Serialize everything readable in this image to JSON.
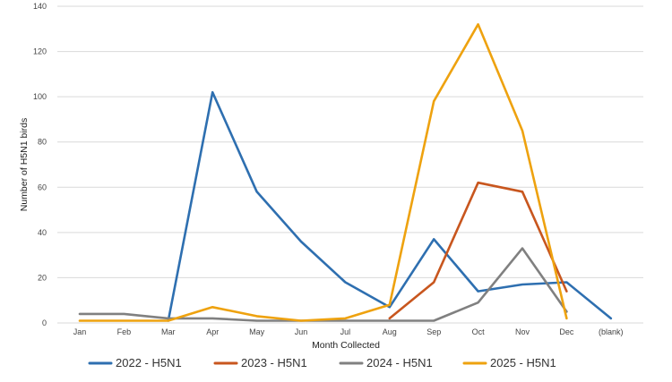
{
  "chart_data": {
    "type": "line",
    "xlabel": "Month Collected",
    "ylabel": "Number of H5N1 birds",
    "ylim": [
      0,
      140
    ],
    "yticks": [
      0,
      20,
      40,
      60,
      80,
      100,
      120,
      140
    ],
    "grid": true,
    "legend_position": "bottom",
    "categories": [
      "Jan",
      "Feb",
      "Mar",
      "Apr",
      "May",
      "Jun",
      "Jul",
      "Aug",
      "Sep",
      "Oct",
      "Nov",
      "Dec",
      "(blank)"
    ],
    "series": [
      {
        "name": "2022 - H5N1",
        "color": "#2e6fb0",
        "values": [
          null,
          null,
          1,
          102,
          58,
          36,
          18,
          7,
          37,
          14,
          17,
          18,
          2
        ]
      },
      {
        "name": "2023 - H5N1",
        "color": "#c8561e",
        "values": [
          null,
          null,
          null,
          null,
          null,
          null,
          null,
          2,
          18,
          62,
          58,
          14,
          null
        ]
      },
      {
        "name": "2024 - H5N1",
        "color": "#808080",
        "values": [
          4,
          4,
          2,
          2,
          1,
          null,
          null,
          null,
          1,
          9,
          33,
          5,
          null
        ]
      },
      {
        "name": "2025 - H5N1",
        "color": "#eea20f",
        "values": [
          1,
          1,
          1,
          7,
          3,
          1,
          2,
          8,
          98,
          132,
          85,
          2,
          null
        ]
      }
    ]
  }
}
